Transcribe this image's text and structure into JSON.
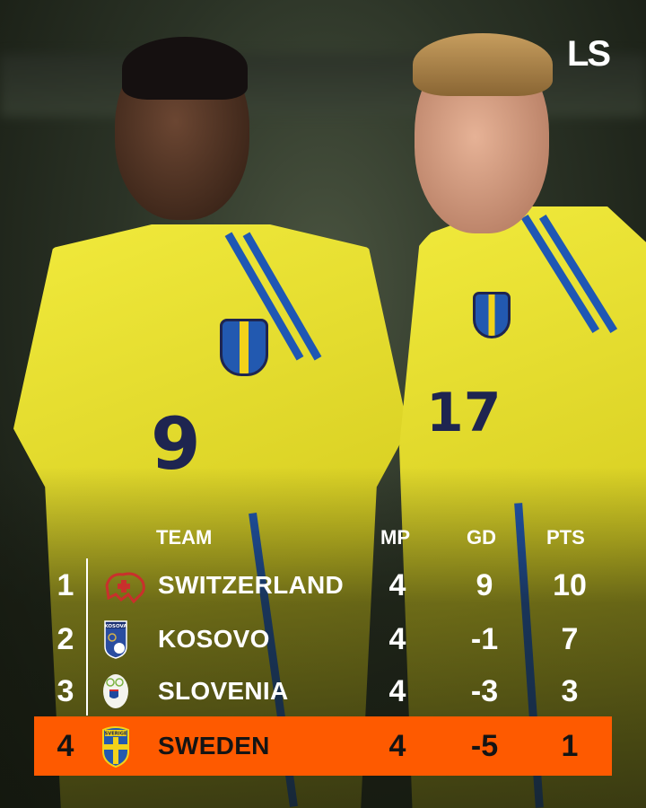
{
  "brand": {
    "logo_text": "LS"
  },
  "colors": {
    "highlight": "#fe5a00",
    "text": "#ffffff",
    "highlight_text": "#141414"
  },
  "table": {
    "headers": {
      "team": "TEAM",
      "mp": "MP",
      "gd": "GD",
      "pts": "PTS"
    },
    "rows": [
      {
        "rank": "1",
        "team": "SWITZERLAND",
        "mp": "4",
        "gd": "9",
        "pts": "10",
        "badge": "switzerland-crest-icon"
      },
      {
        "rank": "2",
        "team": "KOSOVO",
        "mp": "4",
        "gd": "-1",
        "pts": "7",
        "badge": "kosovo-crest-icon",
        "badge_text": "KOSOVA"
      },
      {
        "rank": "3",
        "team": "SLOVENIA",
        "mp": "4",
        "gd": "-3",
        "pts": "3",
        "badge": "slovenia-crest-icon"
      },
      {
        "rank": "4",
        "team": "SWEDEN",
        "mp": "4",
        "gd": "-5",
        "pts": "1",
        "badge": "sweden-crest-icon",
        "badge_text": "SVERIGE",
        "highlighted": true
      }
    ]
  },
  "photo": {
    "shirt_numbers": [
      "9",
      "17"
    ]
  }
}
